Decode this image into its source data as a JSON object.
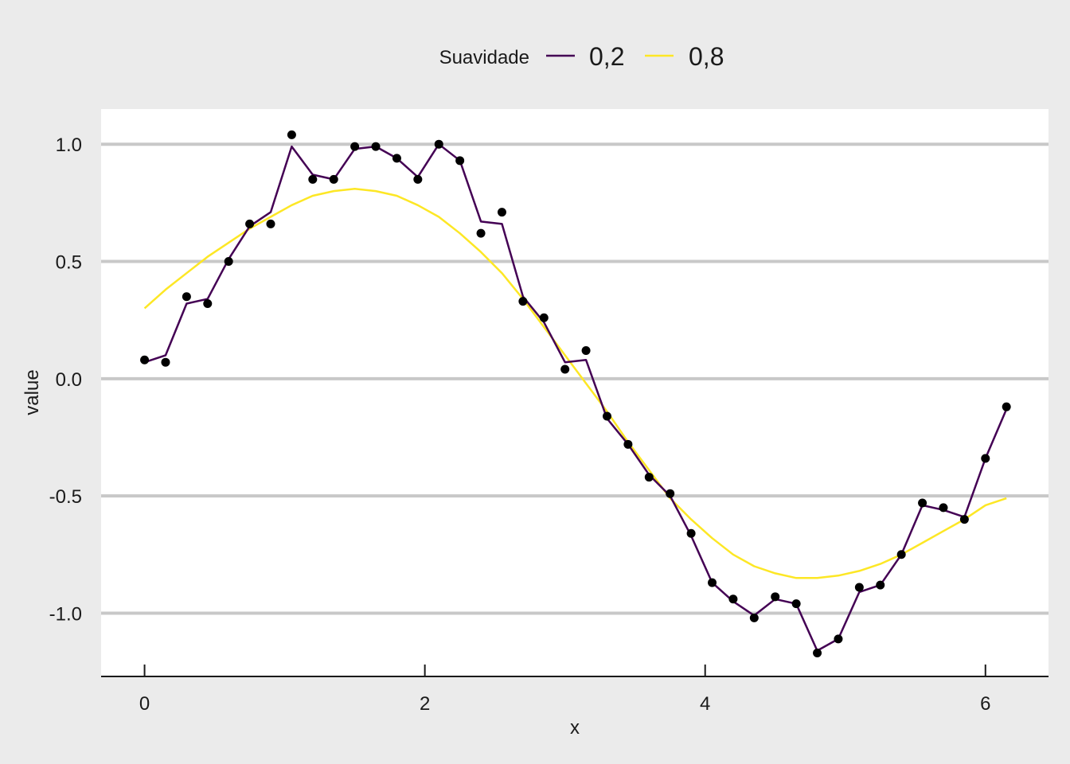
{
  "chart_data": {
    "type": "line",
    "title": "",
    "xlabel": "x",
    "ylabel": "value",
    "xlim": [
      -0.31,
      6.45
    ],
    "ylim": [
      -1.27,
      1.15
    ],
    "x_ticks": [
      0,
      2,
      4,
      6
    ],
    "x_tick_labels": [
      "0",
      "2",
      "4",
      "6"
    ],
    "y_ticks": [
      1.0,
      0.5,
      0.0,
      -0.5,
      -1.0
    ],
    "y_tick_labels": [
      "1.0",
      "0.5",
      "0.0",
      "-0.5",
      "-1.0"
    ],
    "grid": "horizontal major",
    "legend": {
      "title": "Suavidade",
      "position": "top",
      "entries": [
        {
          "label": "0,2",
          "color": "#440154"
        },
        {
          "label": "0,8",
          "color": "#fde725"
        }
      ]
    },
    "points": {
      "color": "#000000",
      "x": [
        0.0,
        0.15,
        0.3,
        0.45,
        0.6,
        0.75,
        0.9,
        1.05,
        1.2,
        1.35,
        1.5,
        1.65,
        1.8,
        1.95,
        2.1,
        2.25,
        2.4,
        2.55,
        2.7,
        2.85,
        3.0,
        3.15,
        3.3,
        3.45,
        3.6,
        3.75,
        3.9,
        4.05,
        4.2,
        4.35,
        4.5,
        4.65,
        4.8,
        4.95,
        5.1,
        5.25,
        5.4,
        5.55,
        5.7,
        5.85,
        6.0,
        6.15
      ],
      "y": [
        0.08,
        0.07,
        0.35,
        0.32,
        0.5,
        0.66,
        0.66,
        1.04,
        0.85,
        0.85,
        0.99,
        0.99,
        0.94,
        0.85,
        1.0,
        0.93,
        0.62,
        0.71,
        0.33,
        0.26,
        0.04,
        0.12,
        -0.16,
        -0.28,
        -0.42,
        -0.49,
        -0.66,
        -0.87,
        -0.94,
        -1.02,
        -0.93,
        -0.96,
        -1.17,
        -1.11,
        -0.89,
        -0.88,
        -0.75,
        -0.53,
        -0.55,
        -0.6,
        -0.34,
        -0.12
      ]
    },
    "series": [
      {
        "name": "0,2",
        "color": "#440154",
        "x": [
          0.0,
          0.15,
          0.3,
          0.45,
          0.6,
          0.75,
          0.9,
          1.05,
          1.2,
          1.35,
          1.5,
          1.65,
          1.8,
          1.95,
          2.1,
          2.25,
          2.4,
          2.55,
          2.7,
          2.85,
          3.0,
          3.15,
          3.3,
          3.45,
          3.6,
          3.75,
          3.9,
          4.05,
          4.2,
          4.35,
          4.5,
          4.65,
          4.8,
          4.95,
          5.1,
          5.25,
          5.4,
          5.55,
          5.7,
          5.85,
          6.0,
          6.15
        ],
        "values": [
          0.07,
          0.1,
          0.32,
          0.34,
          0.51,
          0.65,
          0.71,
          0.99,
          0.87,
          0.85,
          0.98,
          0.99,
          0.94,
          0.86,
          1.0,
          0.93,
          0.67,
          0.66,
          0.35,
          0.24,
          0.07,
          0.08,
          -0.17,
          -0.28,
          -0.41,
          -0.5,
          -0.67,
          -0.87,
          -0.95,
          -1.01,
          -0.94,
          -0.96,
          -1.16,
          -1.11,
          -0.91,
          -0.88,
          -0.75,
          -0.54,
          -0.56,
          -0.59,
          -0.34,
          -0.13
        ]
      },
      {
        "name": "0,8",
        "color": "#fde725",
        "x": [
          0.0,
          0.15,
          0.3,
          0.45,
          0.6,
          0.75,
          0.9,
          1.05,
          1.2,
          1.35,
          1.5,
          1.65,
          1.8,
          1.95,
          2.1,
          2.25,
          2.4,
          2.55,
          2.7,
          2.85,
          3.0,
          3.15,
          3.3,
          3.45,
          3.6,
          3.75,
          3.9,
          4.05,
          4.2,
          4.35,
          4.5,
          4.65,
          4.8,
          4.95,
          5.1,
          5.25,
          5.4,
          5.55,
          5.7,
          5.85,
          6.0,
          6.15
        ],
        "values": [
          0.3,
          0.38,
          0.45,
          0.52,
          0.58,
          0.64,
          0.69,
          0.74,
          0.78,
          0.8,
          0.81,
          0.8,
          0.78,
          0.74,
          0.69,
          0.62,
          0.54,
          0.45,
          0.34,
          0.22,
          0.1,
          -0.02,
          -0.14,
          -0.27,
          -0.39,
          -0.51,
          -0.6,
          -0.68,
          -0.75,
          -0.8,
          -0.83,
          -0.85,
          -0.85,
          -0.84,
          -0.82,
          -0.79,
          -0.75,
          -0.7,
          -0.65,
          -0.6,
          -0.54,
          -0.51
        ]
      }
    ]
  }
}
